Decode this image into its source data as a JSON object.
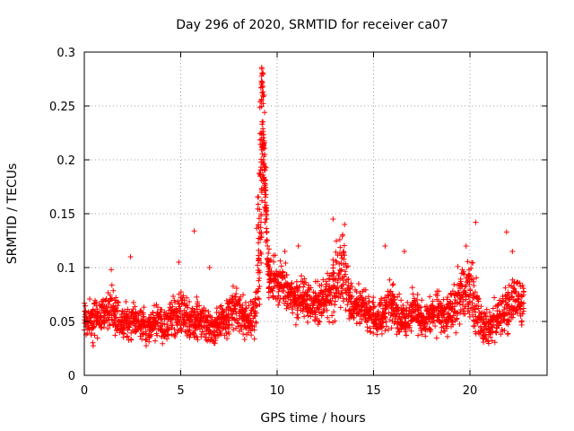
{
  "chart_data": {
    "type": "scatter",
    "title": "Day 296 of 2020, SRMTID for receiver ca07",
    "xlabel": "GPS time / hours",
    "ylabel": "SRMTID / TECUs",
    "xlim": [
      0,
      24.0
    ],
    "ylim": [
      0,
      0.3
    ],
    "xticks": [
      0,
      5,
      10,
      15,
      20
    ],
    "xtick_labels": [
      "0",
      "5",
      "10",
      "15",
      "20"
    ],
    "yticks": [
      0,
      0.05,
      0.1,
      0.15,
      0.2,
      0.25,
      0.3
    ],
    "ytick_labels": [
      "0",
      "0.05",
      "0.1",
      "0.15",
      "0.2",
      "0.25",
      "0.3"
    ],
    "grid": true,
    "marker": "+",
    "color": "#ff0000",
    "series": [
      {
        "name": "SRMTID",
        "x": [
          0.0,
          0.2,
          0.4,
          0.6,
          0.8,
          1.0,
          1.2,
          1.4,
          1.6,
          1.8,
          2.0,
          2.2,
          2.4,
          2.6,
          2.8,
          3.0,
          3.2,
          3.4,
          3.6,
          3.8,
          4.0,
          4.2,
          4.4,
          4.6,
          4.8,
          5.0,
          5.2,
          5.4,
          5.6,
          5.8,
          6.0,
          6.2,
          6.4,
          6.6,
          6.8,
          7.0,
          7.2,
          7.4,
          7.6,
          7.8,
          8.0,
          8.2,
          8.4,
          8.6,
          8.8,
          9.0,
          9.1,
          9.2,
          9.3,
          9.4,
          9.5,
          9.6,
          9.8,
          10.0,
          10.2,
          10.4,
          10.6,
          10.8,
          11.0,
          11.2,
          11.4,
          11.6,
          11.8,
          12.0,
          12.2,
          12.4,
          12.6,
          12.8,
          13.0,
          13.2,
          13.4,
          13.6,
          13.8,
          14.0,
          14.2,
          14.4,
          14.6,
          14.8,
          15.0,
          15.2,
          15.4,
          15.6,
          15.8,
          16.0,
          16.2,
          16.4,
          16.6,
          16.8,
          17.0,
          17.2,
          17.4,
          17.6,
          17.8,
          18.0,
          18.2,
          18.4,
          18.6,
          18.8,
          19.0,
          19.2,
          19.4,
          19.6,
          19.8,
          20.0,
          20.2,
          20.4,
          20.6,
          20.8,
          21.0,
          21.2,
          21.4,
          21.6,
          21.8,
          22.0,
          22.2,
          22.4,
          22.6,
          22.8
        ],
        "center": [
          0.055,
          0.053,
          0.05,
          0.052,
          0.055,
          0.056,
          0.058,
          0.06,
          0.055,
          0.05,
          0.048,
          0.05,
          0.052,
          0.055,
          0.05,
          0.048,
          0.046,
          0.047,
          0.05,
          0.048,
          0.045,
          0.048,
          0.05,
          0.052,
          0.055,
          0.058,
          0.055,
          0.052,
          0.05,
          0.052,
          0.053,
          0.05,
          0.045,
          0.042,
          0.045,
          0.048,
          0.05,
          0.052,
          0.055,
          0.058,
          0.06,
          0.055,
          0.05,
          0.05,
          0.055,
          0.08,
          0.13,
          0.2,
          0.22,
          0.17,
          0.11,
          0.09,
          0.085,
          0.09,
          0.085,
          0.08,
          0.075,
          0.07,
          0.068,
          0.07,
          0.075,
          0.07,
          0.065,
          0.068,
          0.065,
          0.07,
          0.075,
          0.08,
          0.085,
          0.09,
          0.1,
          0.085,
          0.07,
          0.065,
          0.065,
          0.062,
          0.06,
          0.058,
          0.055,
          0.053,
          0.055,
          0.06,
          0.065,
          0.068,
          0.06,
          0.055,
          0.05,
          0.055,
          0.06,
          0.058,
          0.055,
          0.05,
          0.052,
          0.055,
          0.058,
          0.06,
          0.055,
          0.052,
          0.06,
          0.065,
          0.07,
          0.075,
          0.08,
          0.085,
          0.07,
          0.06,
          0.05,
          0.045,
          0.043,
          0.048,
          0.052,
          0.055,
          0.06,
          0.065,
          0.07,
          0.07,
          0.068,
          0.068
        ],
        "spread": [
          0.015,
          0.015,
          0.015,
          0.015,
          0.015,
          0.016,
          0.017,
          0.018,
          0.016,
          0.014,
          0.014,
          0.015,
          0.016,
          0.016,
          0.015,
          0.014,
          0.014,
          0.014,
          0.015,
          0.014,
          0.014,
          0.015,
          0.015,
          0.016,
          0.017,
          0.018,
          0.017,
          0.016,
          0.015,
          0.016,
          0.016,
          0.015,
          0.014,
          0.013,
          0.014,
          0.015,
          0.015,
          0.016,
          0.017,
          0.018,
          0.018,
          0.016,
          0.015,
          0.015,
          0.017,
          0.03,
          0.05,
          0.06,
          0.05,
          0.045,
          0.02,
          0.02,
          0.02,
          0.02,
          0.02,
          0.018,
          0.017,
          0.016,
          0.016,
          0.016,
          0.017,
          0.016,
          0.015,
          0.016,
          0.015,
          0.017,
          0.02,
          0.025,
          0.03,
          0.03,
          0.03,
          0.025,
          0.018,
          0.016,
          0.016,
          0.015,
          0.015,
          0.014,
          0.014,
          0.014,
          0.014,
          0.016,
          0.018,
          0.02,
          0.016,
          0.015,
          0.014,
          0.015,
          0.016,
          0.016,
          0.015,
          0.014,
          0.015,
          0.015,
          0.016,
          0.017,
          0.015,
          0.015,
          0.018,
          0.02,
          0.022,
          0.025,
          0.03,
          0.032,
          0.025,
          0.018,
          0.016,
          0.015,
          0.015,
          0.016,
          0.016,
          0.017,
          0.018,
          0.02,
          0.022,
          0.02,
          0.018,
          0.018
        ],
        "peak_cluster": {
          "x": [
            9.0,
            9.05,
            9.1,
            9.12,
            9.15,
            9.18,
            9.2,
            9.22,
            9.25,
            9.28,
            9.3,
            9.32,
            9.35,
            9.38,
            9.4
          ],
          "y": [
            0.14,
            0.16,
            0.19,
            0.22,
            0.25,
            0.27,
            0.28,
            0.275,
            0.26,
            0.23,
            0.21,
            0.19,
            0.18,
            0.17,
            0.16
          ]
        }
      }
    ]
  }
}
